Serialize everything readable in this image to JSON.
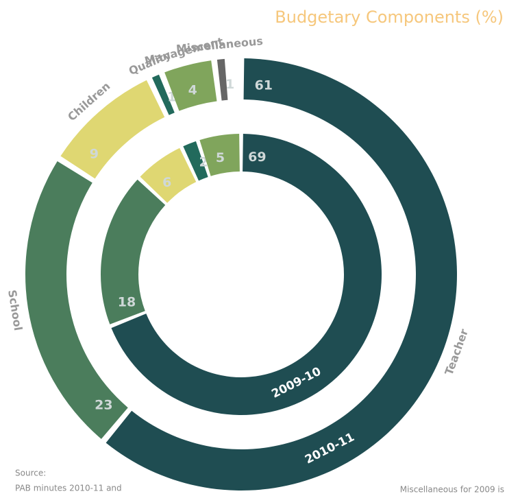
{
  "chart_data": {
    "type": "radial_donut",
    "title": "Budgetary Components (%)",
    "categories": [
      "Teacher",
      "School",
      "Children",
      "Quality",
      "Management",
      "Miscellaneous"
    ],
    "colors": [
      "#1f4d52",
      "#4b7d5c",
      "#dfd772",
      "#226a5c",
      "#80a55c",
      "#666666"
    ],
    "series": [
      {
        "name": "2010-11",
        "values": [
          61,
          23,
          9,
          1,
          4,
          1
        ]
      },
      {
        "name": "2009-10",
        "values": [
          69,
          18,
          6,
          2,
          5,
          null
        ]
      }
    ],
    "annotations": [
      "Source:",
      "PAB minutes 2010-11 and",
      "Miscellaneous for 2009 is"
    ]
  }
}
